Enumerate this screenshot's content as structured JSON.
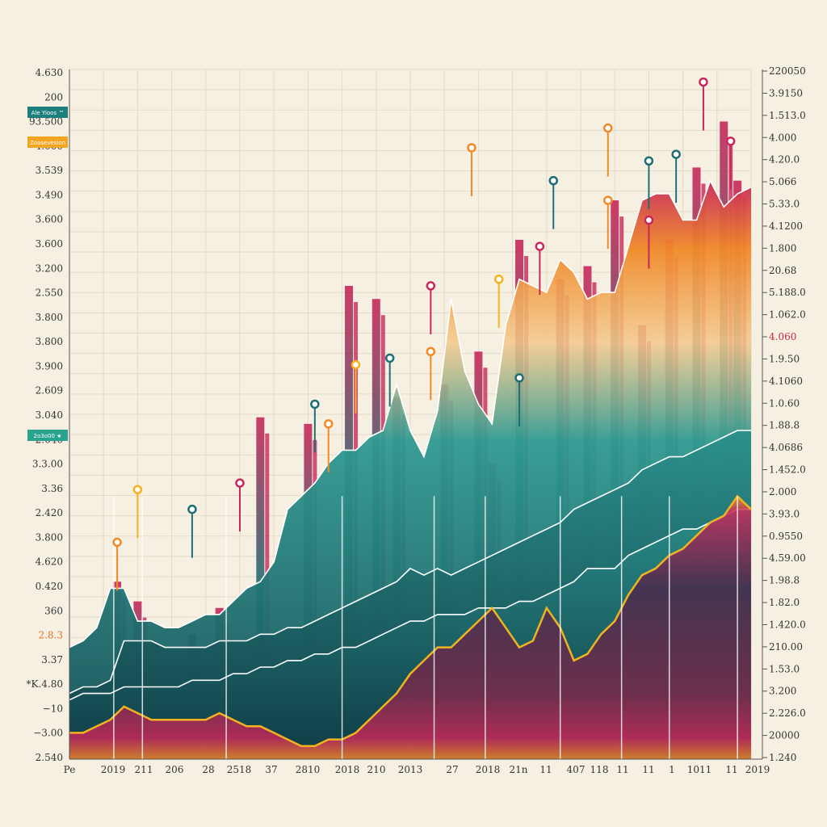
{
  "chart_data": {
    "type": "area",
    "title": "",
    "xlabel": "",
    "ylabel": "",
    "grid": true,
    "colors": {
      "background": "#f6f0e3",
      "grid": "#e4d9c6",
      "teal": "#1d6f73",
      "teal_dark": "#12484f",
      "plum": "#5a2a50",
      "magenta": "#c8285a",
      "orange": "#f08a28",
      "yellow": "#f3b321",
      "line": "#ffffff"
    },
    "ylim_left": [
      0,
      100
    ],
    "left_tick_labels": [
      "4.630",
      "200",
      "93.500",
      "4.000",
      "3.539",
      "3.490",
      "3.600",
      "3.600",
      "3.200",
      "2.550",
      "3.800",
      "3.800",
      "3.900",
      "2.609",
      "3.040",
      "2.040",
      "3.3.00",
      "3.36",
      "2.420",
      "3.800",
      "4.620",
      "0.420",
      "360",
      "2.8.3",
      "3.37",
      "*K.4.80",
      "−10",
      "−3.00",
      "2.540"
    ],
    "left_tags": [
      {
        "label": "Ale Yioos ™",
        "color": "#1d7f7c"
      },
      {
        "label": "Zoasevesion",
        "color": "#f3a51f"
      },
      {
        "label": "2o3o00 ★",
        "color": "#2aa38e"
      }
    ],
    "right_tick_labels": [
      "220050",
      "3.9150",
      "1.513.0",
      "4.000",
      "4.20.0",
      "5.066",
      "5.33.0",
      "4.1200",
      "1.800",
      "20.68",
      "5.188.0",
      "1.062.0",
      "4.060",
      "1.9.50",
      "4.1060",
      "1.0.60",
      "1.88.8",
      "4.0686",
      "1.452.0",
      "2.000",
      "3.93.0",
      "0.9550",
      "4.59.00",
      "1.98.8",
      "1.82.0",
      "1.420.0",
      "210.00",
      "1.53.0",
      "3.200",
      "2.226.0",
      "20000",
      "1.240"
    ],
    "x_tick_labels": [
      "Pe",
      "2019",
      "211",
      "206",
      "28",
      "2518",
      "37",
      "2810",
      "2018",
      "210",
      "2013",
      "27",
      "2018",
      "21n",
      "11",
      "407",
      "118",
      "11",
      "11",
      "1",
      "1011",
      "11",
      "2019"
    ],
    "x": [
      0,
      0.02,
      0.04,
      0.06,
      0.08,
      0.1,
      0.12,
      0.14,
      0.16,
      0.18,
      0.2,
      0.22,
      0.24,
      0.26,
      0.28,
      0.3,
      0.32,
      0.34,
      0.36,
      0.38,
      0.4,
      0.42,
      0.44,
      0.46,
      0.48,
      0.5,
      0.52,
      0.54,
      0.56,
      0.58,
      0.6,
      0.62,
      0.64,
      0.66,
      0.68,
      0.7,
      0.72,
      0.74,
      0.76,
      0.78,
      0.8,
      0.82,
      0.84,
      0.86,
      0.88,
      0.9,
      0.92,
      0.94,
      0.96,
      0.98,
      1.0
    ],
    "series": [
      {
        "fill": "#1d6f73",
        "values": [
          17,
          18,
          20,
          26,
          26,
          21,
          21,
          20,
          20,
          21,
          22,
          22,
          24,
          26,
          27,
          30,
          38,
          40,
          42,
          45,
          47,
          47,
          49,
          50,
          57,
          50,
          46,
          53,
          70,
          59,
          54,
          51,
          66,
          73,
          72,
          71,
          76,
          74,
          70,
          71,
          71,
          78,
          85,
          86,
          86,
          82,
          82,
          88,
          84,
          86,
          87
        ]
      },
      {
        "fill": "#12484f",
        "values": [
          10,
          11,
          11,
          12,
          18,
          18,
          18,
          17,
          17,
          17,
          17,
          18,
          18,
          18,
          19,
          19,
          20,
          20,
          21,
          22,
          23,
          24,
          25,
          26,
          27,
          29,
          28,
          29,
          28,
          29,
          30,
          31,
          32,
          33,
          34,
          35,
          36,
          38,
          39,
          40,
          41,
          42,
          44,
          45,
          46,
          46,
          47,
          48,
          49,
          50,
          50
        ]
      },
      {
        "fill": "#12484f",
        "values": [
          9,
          10,
          10,
          10,
          11,
          11,
          11,
          11,
          11,
          12,
          12,
          12,
          13,
          13,
          14,
          14,
          15,
          15,
          16,
          16,
          17,
          17,
          18,
          19,
          20,
          21,
          21,
          22,
          22,
          22,
          23,
          23,
          23,
          24,
          24,
          25,
          26,
          27,
          29,
          29,
          29,
          31,
          32,
          33,
          34,
          35,
          35,
          36,
          37,
          38,
          38
        ]
      },
      {
        "fill": "#5a2a50",
        "values": [
          4,
          4,
          5,
          6,
          8,
          7,
          6,
          6,
          6,
          6,
          6,
          7,
          6,
          5,
          5,
          4,
          3,
          2,
          2,
          3,
          3,
          4,
          6,
          8,
          10,
          13,
          15,
          17,
          17,
          19,
          21,
          23,
          20,
          17,
          18,
          23,
          20,
          15,
          16,
          19,
          21,
          25,
          28,
          29,
          31,
          32,
          34,
          36,
          37,
          40,
          38
        ]
      }
    ],
    "bars": [
      {
        "x": 0.07,
        "value": 27
      },
      {
        "x": 0.1,
        "value": 24
      },
      {
        "x": 0.18,
        "value": 19
      },
      {
        "x": 0.22,
        "value": 23
      },
      {
        "x": 0.28,
        "value": 52
      },
      {
        "x": 0.35,
        "value": 51
      },
      {
        "x": 0.41,
        "value": 72
      },
      {
        "x": 0.45,
        "value": 70
      },
      {
        "x": 0.48,
        "value": 55
      },
      {
        "x": 0.55,
        "value": 57
      },
      {
        "x": 0.6,
        "value": 62
      },
      {
        "x": 0.62,
        "value": 45
      },
      {
        "x": 0.66,
        "value": 79
      },
      {
        "x": 0.72,
        "value": 73
      },
      {
        "x": 0.76,
        "value": 75
      },
      {
        "x": 0.8,
        "value": 85
      },
      {
        "x": 0.84,
        "value": 66
      },
      {
        "x": 0.88,
        "value": 79
      },
      {
        "x": 0.92,
        "value": 90
      },
      {
        "x": 0.96,
        "value": 97
      },
      {
        "x": 0.98,
        "value": 88
      }
    ],
    "markers": [
      {
        "x": 0.1,
        "value": 41,
        "color": "#f3b321"
      },
      {
        "x": 0.07,
        "value": 33,
        "color": "#f08a28"
      },
      {
        "x": 0.18,
        "value": 38,
        "color": "#1d6f73"
      },
      {
        "x": 0.25,
        "value": 42,
        "color": "#c8285a"
      },
      {
        "x": 0.36,
        "value": 54,
        "color": "#1d6f73"
      },
      {
        "x": 0.38,
        "value": 51,
        "color": "#f08a28"
      },
      {
        "x": 0.42,
        "value": 60,
        "color": "#f3b321"
      },
      {
        "x": 0.47,
        "value": 61,
        "color": "#1d6f73"
      },
      {
        "x": 0.53,
        "value": 72,
        "color": "#c8285a"
      },
      {
        "x": 0.53,
        "value": 62,
        "color": "#f08a28"
      },
      {
        "x": 0.59,
        "value": 93,
        "color": "#f08a28"
      },
      {
        "x": 0.63,
        "value": 73,
        "color": "#f3b321"
      },
      {
        "x": 0.66,
        "value": 58,
        "color": "#1d6f73"
      },
      {
        "x": 0.69,
        "value": 78,
        "color": "#c8285a"
      },
      {
        "x": 0.71,
        "value": 88,
        "color": "#1d6f73"
      },
      {
        "x": 0.79,
        "value": 96,
        "color": "#f08a28"
      },
      {
        "x": 0.79,
        "value": 85,
        "color": "#f08a28"
      },
      {
        "x": 0.85,
        "value": 91,
        "color": "#1d6f73"
      },
      {
        "x": 0.85,
        "value": 82,
        "color": "#c8285a"
      },
      {
        "x": 0.89,
        "value": 92,
        "color": "#1d6f73"
      },
      {
        "x": 0.93,
        "value": 103,
        "color": "#c8285a"
      },
      {
        "x": 0.97,
        "value": 94,
        "color": "#c8285a"
      }
    ]
  }
}
